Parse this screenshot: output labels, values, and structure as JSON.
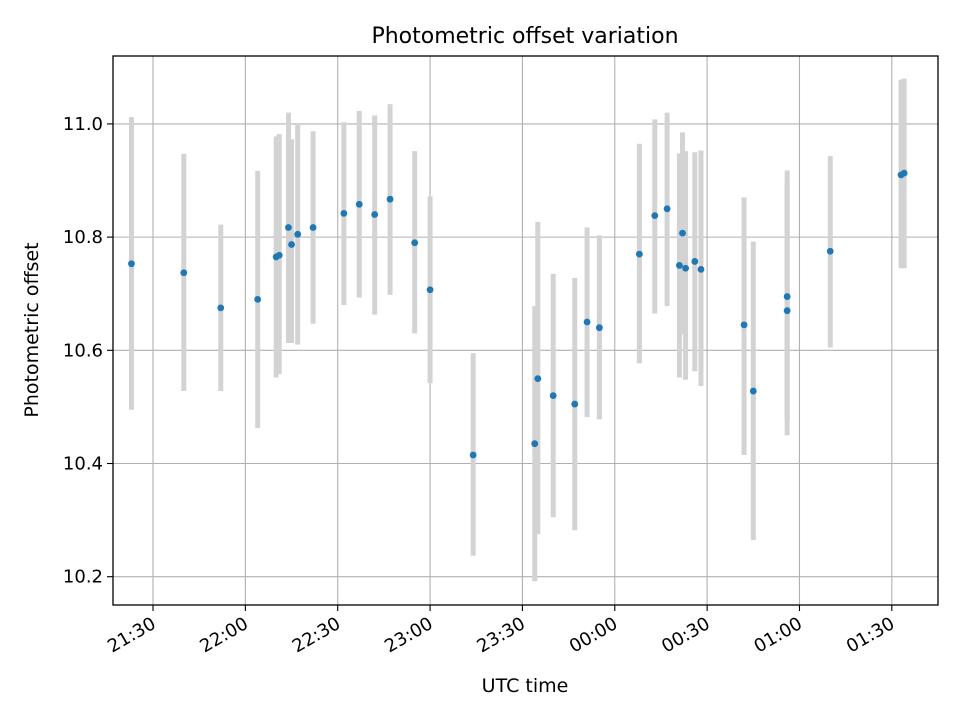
{
  "chart_data": {
    "type": "scatter",
    "title": "Photometric offset variation",
    "xlabel": "UTC time",
    "ylabel": "Photometric offset",
    "x_axis_kind": "time",
    "xlim": [
      "21:17",
      "01:45"
    ],
    "ylim": [
      10.15,
      11.12
    ],
    "grid": true,
    "x_ticks": [
      "21:30",
      "22:00",
      "22:30",
      "23:00",
      "23:30",
      "00:00",
      "00:30",
      "01:00",
      "01:30"
    ],
    "y_ticks": [
      "10.2",
      "10.4",
      "10.6",
      "10.8",
      "11.0"
    ],
    "point_color": "#1f77b4",
    "errorbar_color": "#d3d3d3",
    "points": [
      {
        "t": "21:23",
        "y": 10.753,
        "lo": 10.495,
        "hi": 11.012
      },
      {
        "t": "21:40",
        "y": 10.737,
        "lo": 10.528,
        "hi": 10.947
      },
      {
        "t": "21:52",
        "y": 10.675,
        "lo": 10.528,
        "hi": 10.822
      },
      {
        "t": "22:04",
        "y": 10.69,
        "lo": 10.463,
        "hi": 10.917
      },
      {
        "t": "22:10",
        "y": 10.765,
        "lo": 10.552,
        "hi": 10.978
      },
      {
        "t": "22:11",
        "y": 10.768,
        "lo": 10.558,
        "hi": 10.982
      },
      {
        "t": "22:14",
        "y": 10.817,
        "lo": 10.613,
        "hi": 11.02
      },
      {
        "t": "22:15",
        "y": 10.787,
        "lo": 10.613,
        "hi": 10.973
      },
      {
        "t": "22:17",
        "y": 10.805,
        "lo": 10.61,
        "hi": 11.0
      },
      {
        "t": "22:22",
        "y": 10.817,
        "lo": 10.647,
        "hi": 10.987
      },
      {
        "t": "22:32",
        "y": 10.842,
        "lo": 10.68,
        "hi": 11.003
      },
      {
        "t": "22:37",
        "y": 10.858,
        "lo": 10.693,
        "hi": 11.023
      },
      {
        "t": "22:42",
        "y": 10.84,
        "lo": 10.663,
        "hi": 11.015
      },
      {
        "t": "22:47",
        "y": 10.867,
        "lo": 10.698,
        "hi": 11.035
      },
      {
        "t": "22:55",
        "y": 10.79,
        "lo": 10.63,
        "hi": 10.952
      },
      {
        "t": "23:00",
        "y": 10.707,
        "lo": 10.542,
        "hi": 10.872
      },
      {
        "t": "23:14",
        "y": 10.415,
        "lo": 10.237,
        "hi": 10.595
      },
      {
        "t": "23:34",
        "y": 10.435,
        "lo": 10.192,
        "hi": 10.678
      },
      {
        "t": "23:35",
        "y": 10.55,
        "lo": 10.275,
        "hi": 10.827
      },
      {
        "t": "23:40",
        "y": 10.52,
        "lo": 10.305,
        "hi": 10.735
      },
      {
        "t": "23:47",
        "y": 10.505,
        "lo": 10.282,
        "hi": 10.728
      },
      {
        "t": "23:51",
        "y": 10.65,
        "lo": 10.482,
        "hi": 10.817
      },
      {
        "t": "23:55",
        "y": 10.64,
        "lo": 10.478,
        "hi": 10.803
      },
      {
        "t": "00:08",
        "y": 10.77,
        "lo": 10.577,
        "hi": 10.965
      },
      {
        "t": "00:13",
        "y": 10.838,
        "lo": 10.665,
        "hi": 11.008
      },
      {
        "t": "00:17",
        "y": 10.85,
        "lo": 10.678,
        "hi": 11.02
      },
      {
        "t": "00:21",
        "y": 10.75,
        "lo": 10.552,
        "hi": 10.948
      },
      {
        "t": "00:22",
        "y": 10.807,
        "lo": 10.628,
        "hi": 10.985
      },
      {
        "t": "00:23",
        "y": 10.745,
        "lo": 10.548,
        "hi": 10.952
      },
      {
        "t": "00:26",
        "y": 10.757,
        "lo": 10.563,
        "hi": 10.95
      },
      {
        "t": "00:28",
        "y": 10.743,
        "lo": 10.537,
        "hi": 10.953
      },
      {
        "t": "00:42",
        "y": 10.645,
        "lo": 10.415,
        "hi": 10.87
      },
      {
        "t": "00:45",
        "y": 10.528,
        "lo": 10.265,
        "hi": 10.792
      },
      {
        "t": "00:56",
        "y": 10.67,
        "lo": 10.45,
        "hi": 10.895
      },
      {
        "t": "00:56",
        "y": 10.695,
        "lo": 10.475,
        "hi": 10.918
      },
      {
        "t": "01:10",
        "y": 10.775,
        "lo": 10.605,
        "hi": 10.943
      },
      {
        "t": "01:33",
        "y": 10.91,
        "lo": 10.745,
        "hi": 11.078
      },
      {
        "t": "01:34",
        "y": 10.913,
        "lo": 10.745,
        "hi": 11.08
      }
    ]
  }
}
